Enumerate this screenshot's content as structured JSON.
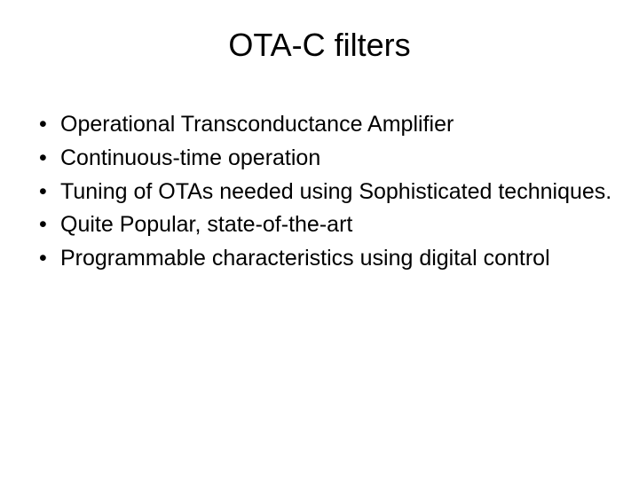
{
  "slide": {
    "title": "OTA-C filters",
    "bullets": [
      "Operational Transconductance Amplifier",
      "Continuous-time operation",
      "Tuning of OTAs needed using Sophisticated techniques.",
      "Quite Popular,  state-of-the-art",
      "Programmable characteristics using digital control"
    ],
    "title_fontsize": 36,
    "bullet_fontsize": 25,
    "text_color": "#000000",
    "background_color": "#ffffff"
  }
}
